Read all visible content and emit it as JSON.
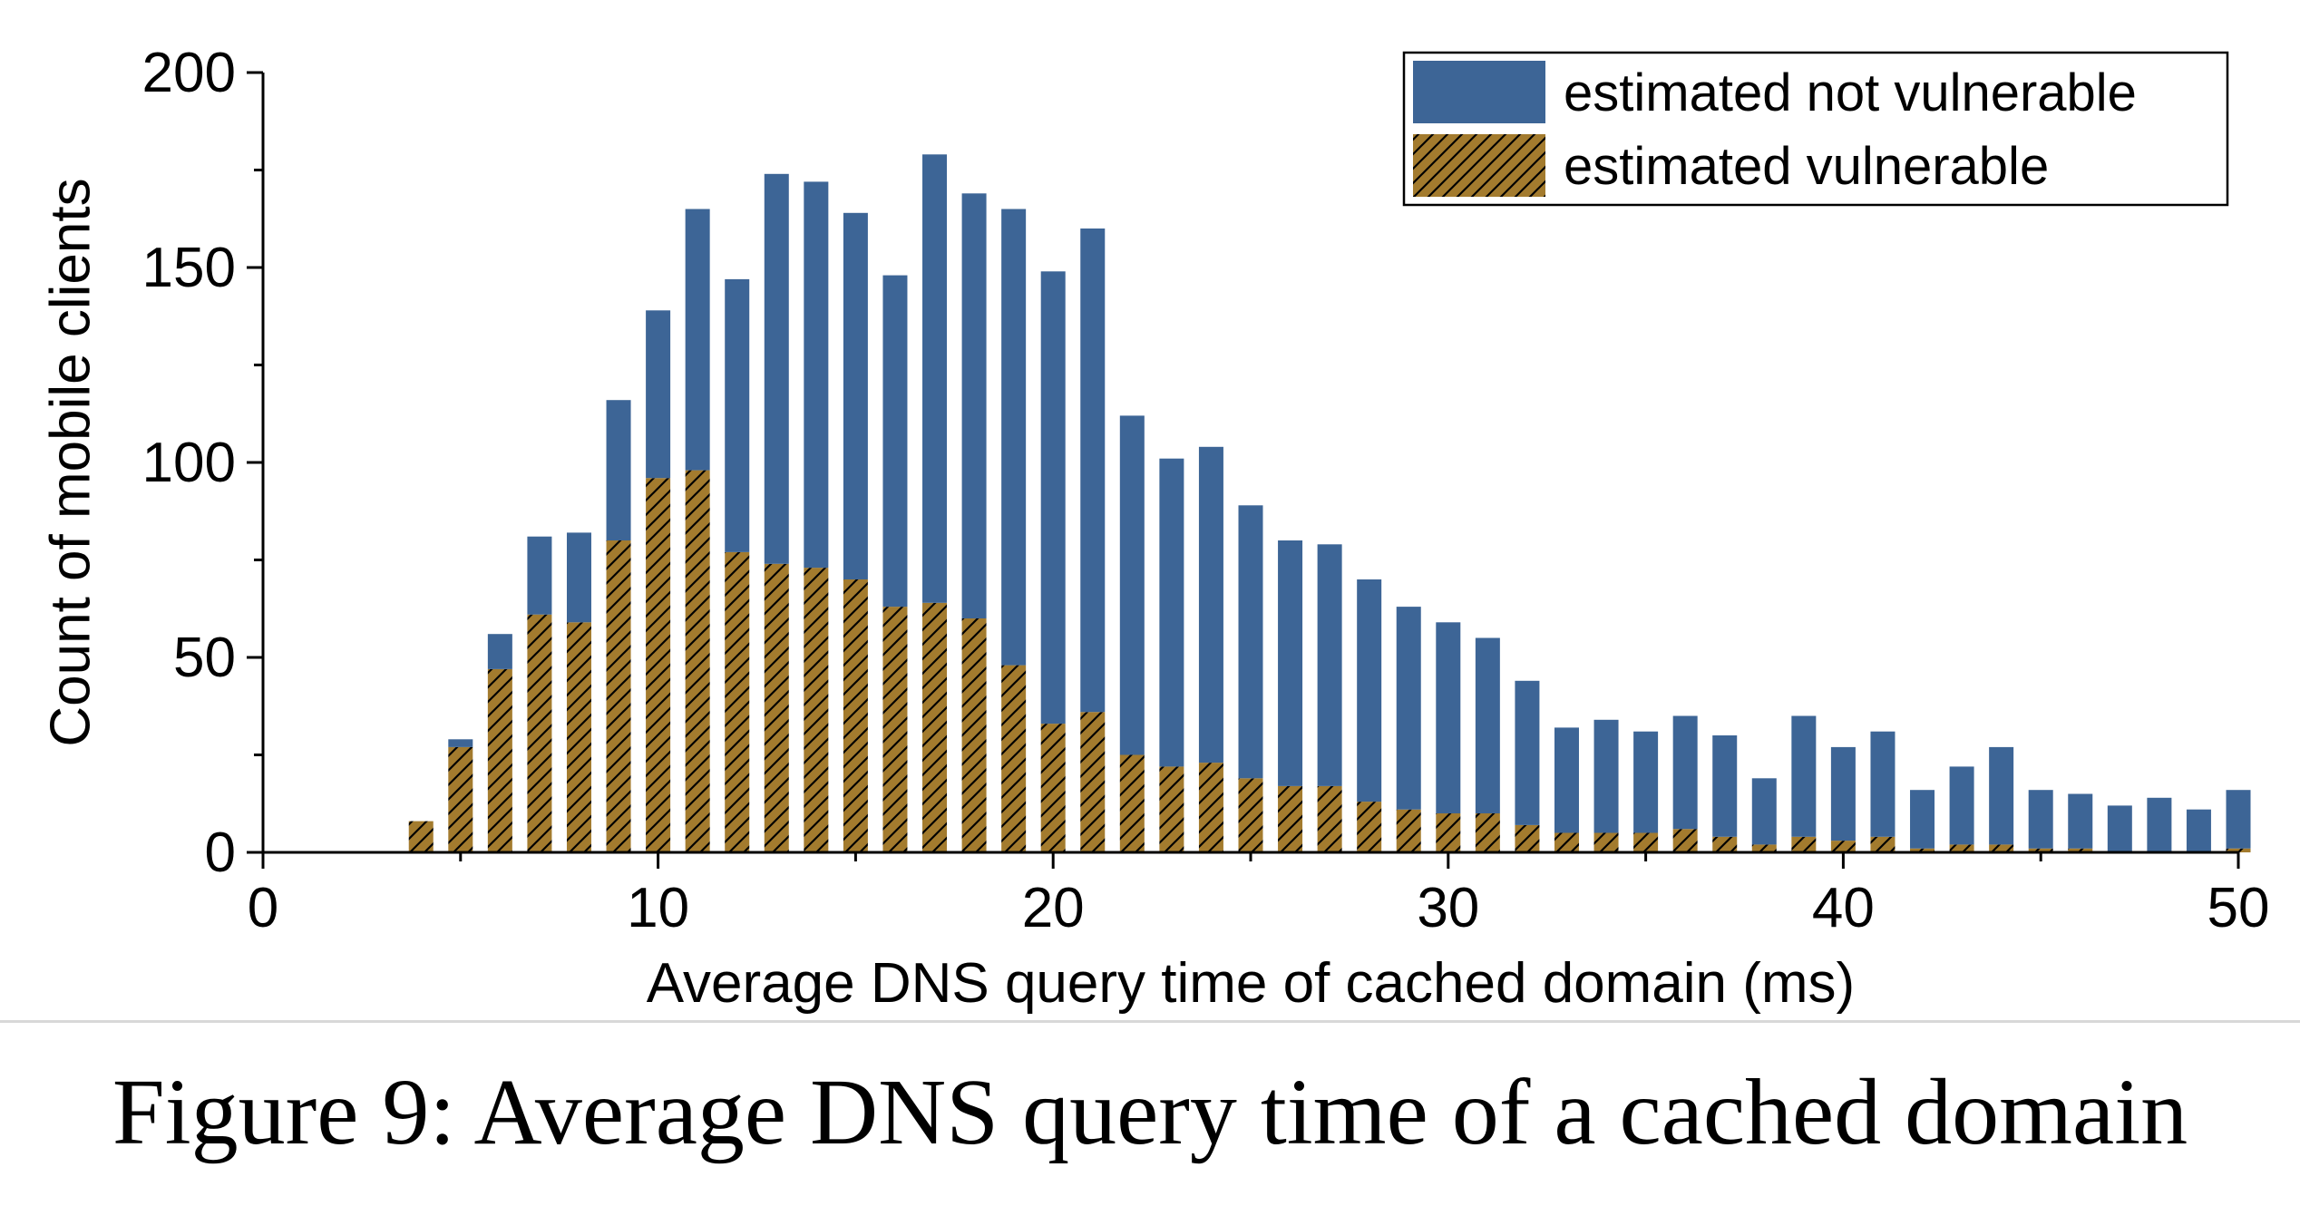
{
  "caption": "Figure 9: Average DNS query time of a cached domain",
  "colors": {
    "not_vulnerable": "#3d6596",
    "vulnerable": "#a37b2e",
    "hatch": "#000000",
    "axis": "#000000"
  },
  "chart_data": {
    "type": "bar",
    "stacked": true,
    "title": "",
    "xlabel": "Average DNS query time of cached domain (ms)",
    "ylabel": "Count of mobile clients",
    "xlim": [
      0,
      50
    ],
    "ylim": [
      0,
      200
    ],
    "x_ticks": [
      0,
      10,
      20,
      30,
      40,
      50
    ],
    "y_ticks": [
      0,
      50,
      100,
      150,
      200
    ],
    "x_tick_labels": [
      "0",
      "10",
      "20",
      "30",
      "40",
      "50"
    ],
    "y_tick_labels": [
      "0",
      "50",
      "100",
      "150",
      "200"
    ],
    "legend_position": "top-right",
    "x": [
      4,
      5,
      6,
      7,
      8,
      9,
      10,
      11,
      12,
      13,
      14,
      15,
      16,
      17,
      18,
      19,
      20,
      21,
      22,
      23,
      24,
      25,
      26,
      27,
      28,
      29,
      30,
      31,
      32,
      33,
      34,
      35,
      36,
      37,
      38,
      39,
      40,
      41,
      42,
      43,
      44,
      45,
      46,
      47,
      48,
      49,
      50
    ],
    "series": [
      {
        "name": "estimated vulnerable",
        "values": [
          8,
          27,
          47,
          61,
          59,
          80,
          96,
          98,
          77,
          74,
          73,
          70,
          63,
          64,
          60,
          48,
          33,
          36,
          25,
          22,
          23,
          19,
          17,
          17,
          13,
          11,
          10,
          10,
          7,
          5,
          5,
          5,
          6,
          4,
          2,
          4,
          3,
          4,
          1,
          2,
          2,
          1,
          1,
          0,
          0,
          0,
          1
        ]
      },
      {
        "name": "estimated not vulnerable",
        "values": [
          0,
          2,
          9,
          20,
          23,
          36,
          43,
          67,
          70,
          100,
          99,
          94,
          85,
          115,
          109,
          117,
          116,
          124,
          87,
          79,
          81,
          70,
          63,
          62,
          57,
          52,
          49,
          45,
          37,
          27,
          29,
          26,
          29,
          26,
          17,
          31,
          24,
          27,
          15,
          20,
          25,
          15,
          14,
          12,
          14,
          11,
          15
        ]
      }
    ]
  }
}
